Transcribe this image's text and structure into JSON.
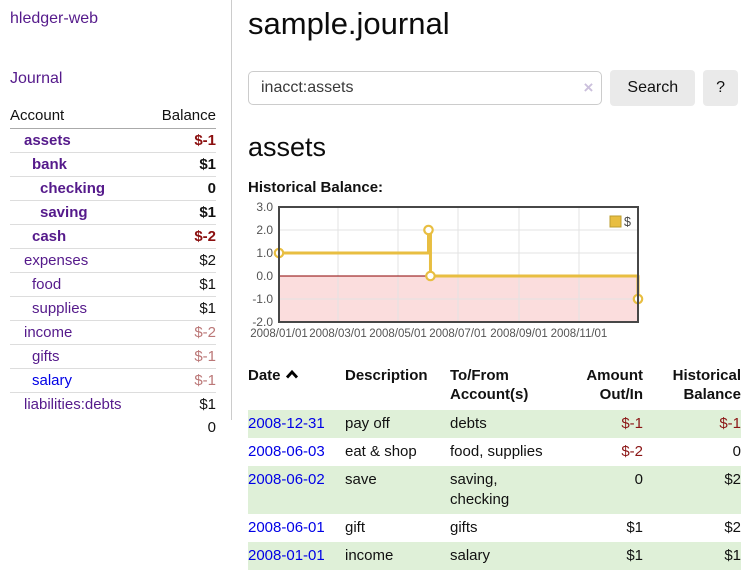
{
  "colors": {
    "link_purple": "#551a8b",
    "link_blue": "#0000e6",
    "negative_strong": "#8b0f0f",
    "negative_weak": "#bb7777",
    "table_negative": "#8b1515",
    "row_highlight_green": "#dff0d8",
    "chart_line": "#e8be41",
    "chart_negative_region": "#fbdddd",
    "chart_zero_line": "#8b0000"
  },
  "sidebar": {
    "app_title": "hledger-web",
    "nav": {
      "journal_label": "Journal"
    },
    "accounts_table": {
      "headers": {
        "account": "Account",
        "balance": "Balance"
      },
      "rows": [
        {
          "name": "assets",
          "depth": 1,
          "bold": true,
          "balance": "$-1",
          "balance_style": "neg-strong",
          "link_color": "purple"
        },
        {
          "name": "bank",
          "depth": 2,
          "bold": true,
          "balance": "$1",
          "balance_style": "pos",
          "link_color": "purple"
        },
        {
          "name": "checking",
          "depth": 3,
          "bold": true,
          "balance": "0",
          "balance_style": "pos",
          "link_color": "purple"
        },
        {
          "name": "saving",
          "depth": 3,
          "bold": true,
          "balance": "$1",
          "balance_style": "pos",
          "link_color": "purple"
        },
        {
          "name": "cash",
          "depth": 2,
          "bold": true,
          "balance": "$-2",
          "balance_style": "neg-strong",
          "link_color": "purple"
        },
        {
          "name": "expenses",
          "depth": 1,
          "bold": false,
          "balance": "$2",
          "balance_style": "pos",
          "link_color": "purple"
        },
        {
          "name": "food",
          "depth": 2,
          "bold": false,
          "balance": "$1",
          "balance_style": "pos",
          "link_color": "purple"
        },
        {
          "name": "supplies",
          "depth": 2,
          "bold": false,
          "balance": "$1",
          "balance_style": "pos",
          "link_color": "purple"
        },
        {
          "name": "income",
          "depth": 1,
          "bold": false,
          "balance": "$-2",
          "balance_style": "neg-weak",
          "link_color": "purple"
        },
        {
          "name": "gifts",
          "depth": 2,
          "bold": false,
          "balance": "$-1",
          "balance_style": "neg-weak",
          "link_color": "purple"
        },
        {
          "name": "salary",
          "depth": 2,
          "bold": false,
          "balance": "$-1",
          "balance_style": "neg-weak",
          "link_color": "blue"
        },
        {
          "name": "liabilities:debts",
          "depth": 1,
          "bold": false,
          "balance": "$1",
          "balance_style": "pos",
          "link_color": "purple"
        }
      ],
      "total": "0"
    }
  },
  "header": {
    "title": "sample.journal"
  },
  "search": {
    "value": "inacct:assets",
    "clear_icon": "×",
    "search_label": "Search",
    "help_label": "?"
  },
  "account_page": {
    "heading": "assets",
    "chart_label": "Historical Balance:"
  },
  "chart_data": {
    "type": "line",
    "title": "Historical Balance",
    "step": true,
    "series": [
      {
        "name": "$",
        "points": [
          [
            "2008-01-01",
            1
          ],
          [
            "2008-06-01",
            2
          ],
          [
            "2008-06-03",
            0
          ],
          [
            "2008-12-31",
            -1
          ]
        ]
      }
    ],
    "x_range": [
      "2008-01-01",
      "2008-12-31"
    ],
    "x_tick_labels": [
      "2008/01/01",
      "2008/03/01",
      "2008/05/01",
      "2008/07/01",
      "2008/09/01",
      "2008/11/01"
    ],
    "y_ticks": [
      -2,
      -1,
      0,
      1,
      2,
      3
    ],
    "y_tick_labels": [
      "-2.0",
      "-1.0",
      "0.0",
      "1.0",
      "2.0",
      "3.0"
    ],
    "ylim": [
      -2,
      3
    ],
    "grid": true,
    "legend": {
      "position": "top-right",
      "entries": [
        {
          "label": "$",
          "color": "#e8be41"
        }
      ]
    }
  },
  "transactions_table": {
    "headers": {
      "date": "Date",
      "description": "Description",
      "accounts_line1": "To/From",
      "accounts_line2": "Account(s)",
      "amount_line1": "Amount",
      "amount_line2": "Out/In",
      "balance_line1": "Historical",
      "balance_line2": "Balance"
    },
    "sort_icon": "caret-up",
    "rows": [
      {
        "date": "2008-12-31",
        "description": "pay off",
        "accounts": "debts",
        "amount": "$-1",
        "amount_neg": true,
        "balance": "$-1",
        "balance_neg": true
      },
      {
        "date": "2008-06-03",
        "description": "eat & shop",
        "accounts": "food, supplies",
        "amount": "$-2",
        "amount_neg": true,
        "balance": "0",
        "balance_neg": false
      },
      {
        "date": "2008-06-02",
        "description": "save",
        "accounts": "saving,\nchecking",
        "amount": "0",
        "amount_neg": false,
        "balance": "$2",
        "balance_neg": false
      },
      {
        "date": "2008-06-01",
        "description": "gift",
        "accounts": "gifts",
        "amount": "$1",
        "amount_neg": false,
        "balance": "$2",
        "balance_neg": false
      },
      {
        "date": "2008-01-01",
        "description": "income",
        "accounts": "salary",
        "amount": "$1",
        "amount_neg": false,
        "balance": "$1",
        "balance_neg": false
      }
    ]
  }
}
